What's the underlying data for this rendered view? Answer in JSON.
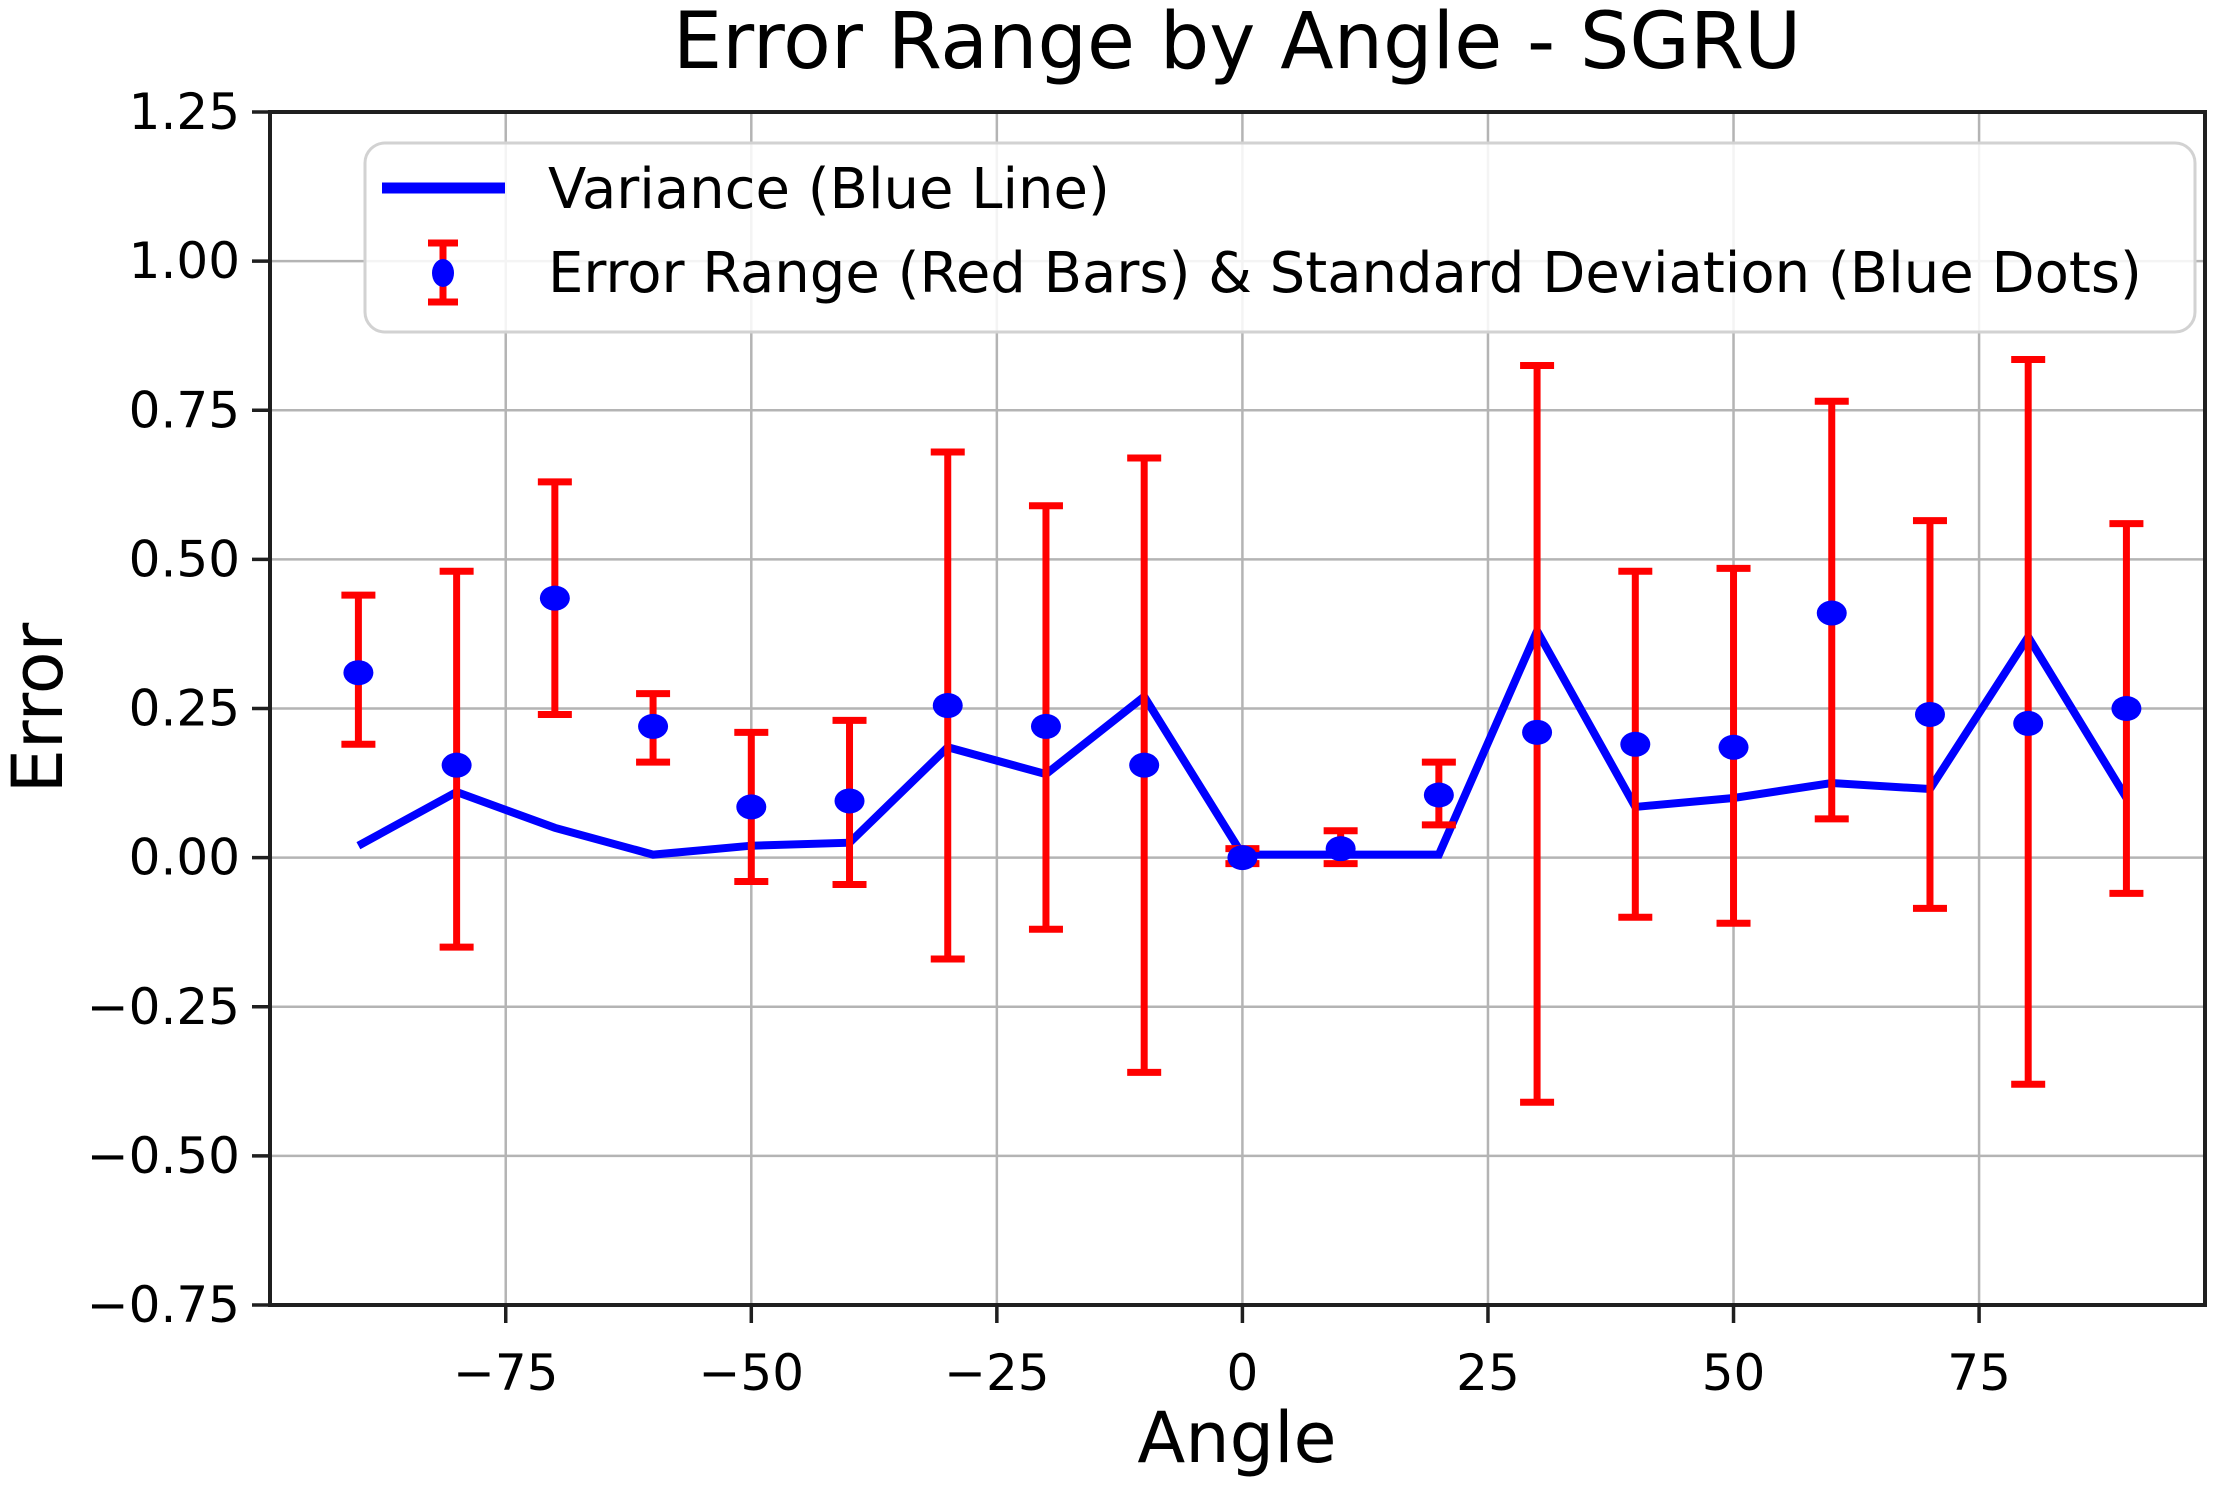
{
  "chart": {
    "title": "Error Range by Angle - SGRU",
    "xlabel": "Angle",
    "ylabel": "Error"
  },
  "legend": {
    "items": [
      {
        "label": "Variance (Blue Line)",
        "marker": "blue-line-swatch"
      },
      {
        "label": "Error Range (Red Bars) & Standard Deviation (Blue Dots)",
        "marker": "red-errorbar-blue-dot-swatch"
      }
    ]
  },
  "chart_data": {
    "type": "line+errorbar",
    "title": "Error Range by Angle - SGRU",
    "xlabel": "Angle",
    "ylabel": "Error",
    "x": [
      -90,
      -80,
      -70,
      -60,
      -50,
      -40,
      -30,
      -20,
      -10,
      0,
      10,
      20,
      30,
      40,
      50,
      60,
      70,
      80,
      90
    ],
    "series": [
      {
        "name": "Variance (Blue Line)",
        "type": "line",
        "color": "#0000ff",
        "values": [
          0.02,
          0.11,
          0.05,
          0.005,
          0.02,
          0.025,
          0.185,
          0.14,
          0.27,
          0.005,
          0.005,
          0.005,
          0.38,
          0.085,
          0.1,
          0.125,
          0.115,
          0.37,
          0.1
        ]
      },
      {
        "name": "Standard Deviation (Blue Dots)",
        "type": "scatter",
        "color": "#0000ff",
        "values": [
          0.31,
          0.155,
          0.435,
          0.22,
          0.085,
          0.095,
          0.255,
          0.22,
          0.155,
          0.0,
          0.015,
          0.105,
          0.21,
          0.19,
          0.185,
          0.41,
          0.24,
          0.225,
          0.25
        ]
      },
      {
        "name": "Error Range (Red Bars)",
        "type": "errorbar",
        "color": "#ff0000",
        "low": [
          0.19,
          -0.15,
          0.24,
          0.16,
          -0.04,
          -0.045,
          -0.17,
          -0.12,
          -0.36,
          -0.01,
          -0.01,
          0.055,
          -0.41,
          -0.1,
          -0.11,
          0.065,
          -0.085,
          -0.38,
          -0.06
        ],
        "high": [
          0.44,
          0.48,
          0.63,
          0.275,
          0.21,
          0.23,
          0.68,
          0.59,
          0.67,
          0.015,
          0.045,
          0.16,
          0.825,
          0.48,
          0.485,
          0.765,
          0.565,
          0.835,
          0.56
        ]
      }
    ],
    "xticks": {
      "values": [
        -75,
        -50,
        -25,
        0,
        25,
        50,
        75
      ],
      "labels": [
        "−75",
        "−50",
        "−25",
        "0",
        "25",
        "50",
        "75"
      ]
    },
    "yticks": {
      "values": [
        1.25,
        1.0,
        0.75,
        0.5,
        0.25,
        0.0,
        -0.25,
        -0.5,
        -0.75
      ],
      "labels": [
        "1.25",
        "1.00",
        "0.75",
        "0.50",
        "0.25",
        "0.00",
        "−0.25",
        "−0.50",
        "−0.75"
      ]
    },
    "xlim": [
      -99,
      98
    ],
    "ylim": [
      -0.75,
      1.25
    ],
    "grid": true,
    "legend_position": "upper left",
    "colors": {
      "line": "#0000ff",
      "dot": "#0000ff",
      "errorbar": "#ff0000",
      "grid": "#b4b4b4",
      "spine": "#1f1f1f",
      "text": "#000000",
      "legend_border": "#d2d2d2",
      "background": "#ffffff"
    }
  }
}
